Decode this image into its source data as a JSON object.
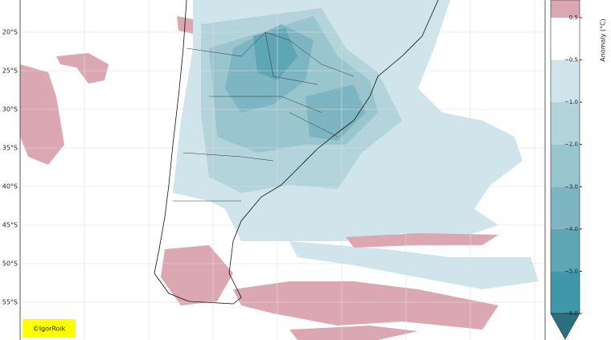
{
  "map": {
    "lat_labels": [
      "20°S",
      "25°S",
      "30°S",
      "35°S",
      "40°S",
      "45°S",
      "50°S",
      "55°S"
    ],
    "credit": "©IgorRoik"
  },
  "colorbar": {
    "label": "Anomaly (°C)",
    "ticks": [
      "0.5",
      "−0.5",
      "−1.0",
      "−2.0",
      "−3.0",
      "−4.0",
      "−5.0",
      "−6.0"
    ],
    "colors": [
      "#dba8b1",
      "#ffffff",
      "#cfe5eb",
      "#b3d4db",
      "#99c5ce",
      "#7db6c2",
      "#5ea6b6",
      "#3f97a9",
      "#2a7080"
    ]
  }
}
